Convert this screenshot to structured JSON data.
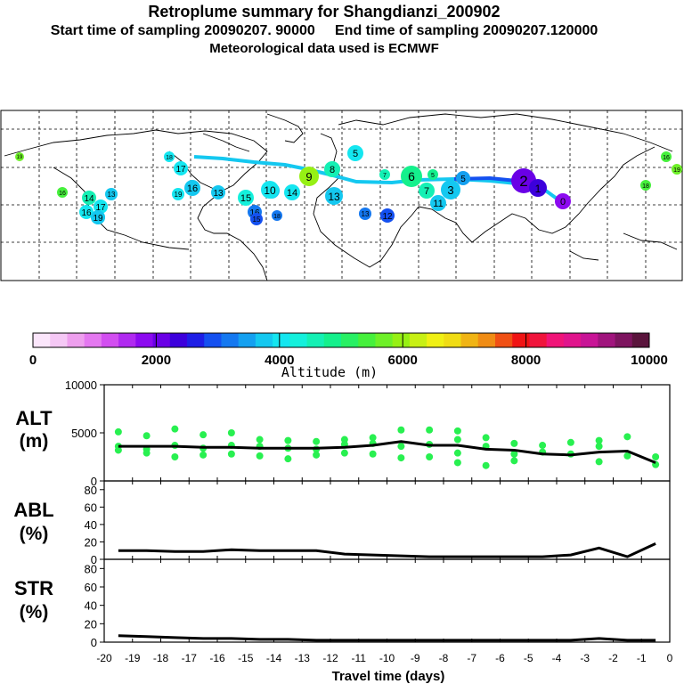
{
  "header": {
    "title": "Retroplume summary for Shangdianzi_200902",
    "subtitle": "Start time of sampling 20090207. 90000     End time of sampling 20090207.120000",
    "meteo": "Meteorological data used is ECMWF"
  },
  "colors": {
    "palette": [
      "#fbe6fb",
      "#f5c8f5",
      "#ee9fee",
      "#e478f0",
      "#d24ef0",
      "#b02af0",
      "#8c0af0",
      "#6a00e6",
      "#3c00dc",
      "#1e1ee6",
      "#1450f0",
      "#1478f0",
      "#14a0f0",
      "#14c8f0",
      "#14e6f0",
      "#14f0dc",
      "#14f0b4",
      "#14f08c",
      "#28f064",
      "#46f03c",
      "#6ef028",
      "#96f014",
      "#c8f014",
      "#f0f014",
      "#f0dc14",
      "#f0b414",
      "#f08c14",
      "#f05014",
      "#f01414",
      "#f0143c",
      "#f01478",
      "#e0148c",
      "#c81496",
      "#a0147d",
      "#7d145f",
      "#5a143c"
    ],
    "marker": "#28f050",
    "map_bg": "#ffffff"
  },
  "map": {
    "labels": [
      {
        "t": "19",
        "c": "#6ef028"
      },
      {
        "t": "16",
        "c": "#46f03c"
      },
      {
        "t": "14",
        "c": "#14f0b4"
      },
      {
        "t": "19",
        "c": "#14e6f0"
      },
      {
        "t": "16",
        "c": "#14e6f0"
      },
      {
        "t": "17",
        "c": "#14e6f0"
      },
      {
        "t": "19",
        "c": "#14c8f0"
      },
      {
        "t": "13",
        "c": "#14c8f0"
      },
      {
        "t": "17",
        "c": "#14e6f0"
      },
      {
        "t": "18",
        "c": "#14e6f0"
      },
      {
        "t": "16",
        "c": "#14c8f0"
      },
      {
        "t": "13",
        "c": "#14c8f0"
      },
      {
        "t": "15",
        "c": "#14f0dc"
      },
      {
        "t": "19",
        "c": "#14e6f0"
      },
      {
        "t": "16",
        "c": "#14c8f0"
      },
      {
        "t": "10",
        "c": "#14e6f0"
      },
      {
        "t": "14",
        "c": "#14e6f0"
      },
      {
        "t": "16",
        "c": "#1478f0"
      },
      {
        "t": "15",
        "c": "#1450f0"
      },
      {
        "t": "18",
        "c": "#1478f0"
      },
      {
        "t": "13",
        "c": "#14c8f0"
      },
      {
        "t": "13",
        "c": "#1478f0"
      },
      {
        "t": "9",
        "c": "#96f014"
      },
      {
        "t": "8",
        "c": "#14f0b4"
      },
      {
        "t": "5",
        "c": "#14e6f0"
      },
      {
        "t": "7",
        "c": "#14f0b4"
      },
      {
        "t": "6",
        "c": "#14f08c"
      },
      {
        "t": "5",
        "c": "#14f08c"
      },
      {
        "t": "7",
        "c": "#14f0b4"
      },
      {
        "t": "3",
        "c": "#14c8f0"
      },
      {
        "t": "5",
        "c": "#14a0f0"
      },
      {
        "t": "2",
        "c": "#6a00e6"
      },
      {
        "t": "1",
        "c": "#3c00dc"
      },
      {
        "t": "0",
        "c": "#8c0af0"
      },
      {
        "t": "11",
        "c": "#14c8f0"
      },
      {
        "t": "12",
        "c": "#1450f0"
      },
      {
        "t": "16",
        "c": "#46f03c"
      },
      {
        "t": "19",
        "c": "#6ef028"
      },
      {
        "t": "18",
        "c": "#46f03c"
      }
    ]
  },
  "colorbar": {
    "ticks": [
      "0",
      "2000",
      "4000",
      "6000",
      "8000",
      "10000"
    ],
    "label": "Altitude (m)"
  },
  "chart_data": [
    {
      "type": "line",
      "panel": "ALT",
      "ylabel_1": "ALT",
      "ylabel_2": "(m)",
      "ylim": [
        0,
        10000
      ],
      "yticks": [
        "10000",
        "5000",
        "0"
      ],
      "x": [
        -19.5,
        -18.5,
        -17.5,
        -16.5,
        -15.5,
        -14.5,
        -13.5,
        -12.5,
        -11.5,
        -10.5,
        -9.5,
        -8.5,
        -7.5,
        -6.5,
        -5.5,
        -4.5,
        -3.5,
        -2.5,
        -1.5,
        -0.5
      ],
      "values": [
        3600,
        3600,
        3600,
        3500,
        3500,
        3400,
        3400,
        3400,
        3500,
        3700,
        4100,
        3700,
        3700,
        3300,
        3200,
        2800,
        2700,
        3000,
        3100,
        1900
      ],
      "scatter": [
        [
          -19.5,
          5100
        ],
        [
          -19.5,
          3600
        ],
        [
          -19.5,
          3200
        ],
        [
          -18.5,
          4700
        ],
        [
          -18.5,
          3300
        ],
        [
          -18.5,
          2900
        ],
        [
          -17.5,
          5400
        ],
        [
          -17.5,
          3700
        ],
        [
          -17.5,
          2500
        ],
        [
          -16.5,
          4800
        ],
        [
          -16.5,
          3400
        ],
        [
          -16.5,
          2700
        ],
        [
          -15.5,
          5000
        ],
        [
          -15.5,
          3700
        ],
        [
          -15.5,
          2800
        ],
        [
          -14.5,
          4300
        ],
        [
          -14.5,
          3600
        ],
        [
          -14.5,
          2600
        ],
        [
          -13.5,
          4200
        ],
        [
          -13.5,
          3400
        ],
        [
          -13.5,
          2300
        ],
        [
          -12.5,
          4100
        ],
        [
          -12.5,
          3300
        ],
        [
          -12.5,
          2700
        ],
        [
          -11.5,
          4300
        ],
        [
          -11.5,
          3800
        ],
        [
          -11.5,
          2900
        ],
        [
          -10.5,
          4500
        ],
        [
          -10.5,
          3900
        ],
        [
          -10.5,
          2800
        ],
        [
          -9.5,
          5300
        ],
        [
          -9.5,
          3600
        ],
        [
          -9.5,
          2400
        ],
        [
          -8.5,
          5300
        ],
        [
          -8.5,
          3800
        ],
        [
          -8.5,
          2500
        ],
        [
          -7.5,
          5200
        ],
        [
          -7.5,
          4300
        ],
        [
          -7.5,
          2900
        ],
        [
          -7.5,
          1900
        ],
        [
          -6.5,
          4500
        ],
        [
          -6.5,
          3600
        ],
        [
          -6.5,
          1600
        ],
        [
          -5.5,
          3900
        ],
        [
          -5.5,
          2800
        ],
        [
          -5.5,
          2100
        ],
        [
          -4.5,
          3700
        ],
        [
          -4.5,
          3000
        ],
        [
          -3.5,
          4000
        ],
        [
          -3.5,
          2800
        ],
        [
          -2.5,
          4200
        ],
        [
          -2.5,
          3600
        ],
        [
          -2.5,
          2000
        ],
        [
          -1.5,
          4600
        ],
        [
          -1.5,
          2600
        ],
        [
          -0.5,
          2500
        ],
        [
          -0.5,
          1700
        ]
      ]
    },
    {
      "type": "line",
      "panel": "ABL",
      "ylabel_1": "ABL",
      "ylabel_2": "(%)",
      "ylim": [
        0,
        90
      ],
      "yticks": [
        "80",
        "60",
        "40",
        "20",
        "0"
      ],
      "x": [
        -19.5,
        -18.5,
        -17.5,
        -16.5,
        -15.5,
        -14.5,
        -13.5,
        -12.5,
        -11.5,
        -10.5,
        -9.5,
        -8.5,
        -7.5,
        -6.5,
        -5.5,
        -4.5,
        -3.5,
        -2.5,
        -1.5,
        -0.5
      ],
      "values": [
        10,
        10,
        9,
        9,
        11,
        10,
        10,
        10,
        6,
        5,
        4,
        3,
        3,
        3,
        3,
        3,
        5,
        13,
        3,
        18
      ]
    },
    {
      "type": "line",
      "panel": "STR",
      "ylabel_1": "STR",
      "ylabel_2": "(%)",
      "ylim": [
        0,
        90
      ],
      "yticks": [
        "80",
        "60",
        "40",
        "20",
        "0"
      ],
      "x": [
        -19.5,
        -18.5,
        -17.5,
        -16.5,
        -15.5,
        -14.5,
        -13.5,
        -12.5,
        -11.5,
        -10.5,
        -9.5,
        -8.5,
        -7.5,
        -6.5,
        -5.5,
        -4.5,
        -3.5,
        -2.5,
        -1.5,
        -0.5
      ],
      "values": [
        7,
        6,
        5,
        4,
        4,
        3,
        3,
        2,
        2,
        2,
        2,
        2,
        2,
        2,
        2,
        2,
        2,
        4,
        2,
        2
      ]
    }
  ],
  "xaxis": {
    "ticks": [
      "-20",
      "-19",
      "-18",
      "-17",
      "-16",
      "-15",
      "-14",
      "-13",
      "-12",
      "-11",
      "-10",
      "-9",
      "-8",
      "-7",
      "-6",
      "-5",
      "-4",
      "-3",
      "-2",
      "-1",
      "0"
    ],
    "label": "Travel time (days)"
  }
}
